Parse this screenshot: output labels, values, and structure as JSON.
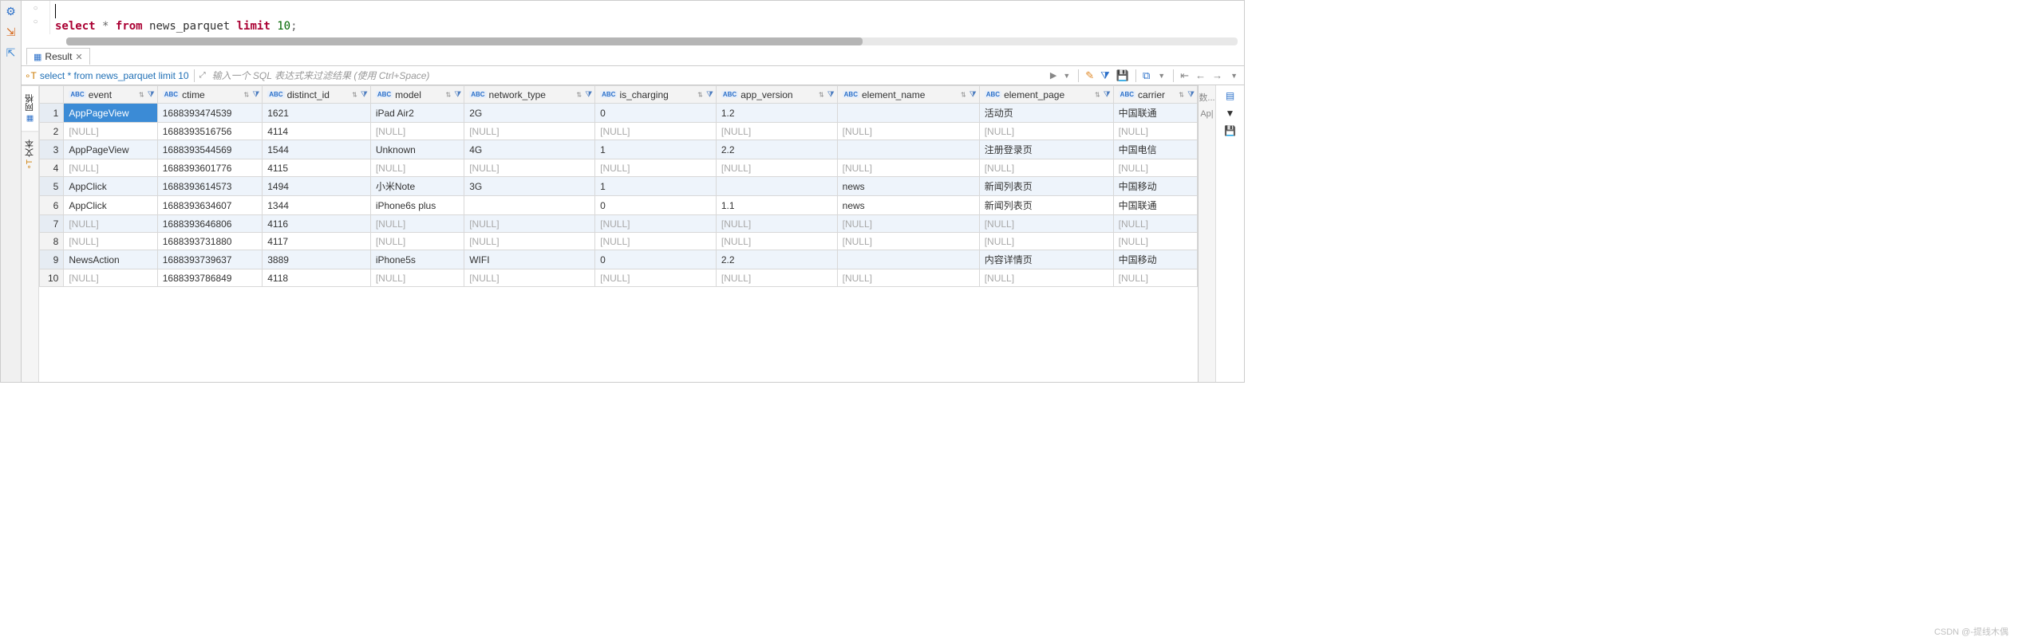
{
  "editor": {
    "code_html": "<span class='kw-red'>select</span> <span class='kw-gray'>*</span> <span class='kw-red'>from</span> news_parquet <span class='kw-red'>limit</span> <span class='kw-green'>10</span><span class='kw-gray'>;</span>"
  },
  "tab": {
    "label": "Result"
  },
  "querybar": {
    "query_text": "select * from news_parquet limit 10",
    "filter_placeholder": "输入一个 SQL 表达式来过滤结果 (使用 Ctrl+Space)"
  },
  "side_tabs": {
    "grid": "网格",
    "text": "文本"
  },
  "right_rail": {
    "value_label": "数...",
    "row_label": "Ap|"
  },
  "columns": [
    {
      "name": "event",
      "type": "ABC",
      "cls": "col-event"
    },
    {
      "name": "ctime",
      "type": "ABC",
      "cls": "col-ctime"
    },
    {
      "name": "distinct_id",
      "type": "ABC",
      "cls": "col-distinct"
    },
    {
      "name": "model",
      "type": "ABC",
      "cls": "col-model"
    },
    {
      "name": "network_type",
      "type": "ABC",
      "cls": "col-network"
    },
    {
      "name": "is_charging",
      "type": "ABC",
      "cls": "col-charging"
    },
    {
      "name": "app_version",
      "type": "ABC",
      "cls": "col-appver"
    },
    {
      "name": "element_name",
      "type": "ABC",
      "cls": "col-elname"
    },
    {
      "name": "element_page",
      "type": "ABC",
      "cls": "col-elpage"
    },
    {
      "name": "carrier",
      "type": "ABC",
      "cls": "col-carrier"
    }
  ],
  "rows": [
    [
      "AppPageView",
      "1688393474539",
      "1621",
      "iPad Air2",
      "2G",
      "0",
      "1.2",
      "",
      "活动页",
      "中国联通"
    ],
    [
      null,
      "1688393516756",
      "4114",
      null,
      null,
      null,
      null,
      null,
      null,
      null
    ],
    [
      "AppPageView",
      "1688393544569",
      "1544",
      "Unknown",
      "4G",
      "1",
      "2.2",
      "",
      "注册登录页",
      "中国电信"
    ],
    [
      null,
      "1688393601776",
      "4115",
      null,
      null,
      null,
      null,
      null,
      null,
      null
    ],
    [
      "AppClick",
      "1688393614573",
      "1494",
      "小米Note",
      "3G",
      "1",
      "",
      "news",
      "新闻列表页",
      "中国移动"
    ],
    [
      "AppClick",
      "1688393634607",
      "1344",
      "iPhone6s plus",
      "",
      "0",
      "1.1",
      "news",
      "新闻列表页",
      "中国联通"
    ],
    [
      null,
      "1688393646806",
      "4116",
      null,
      null,
      null,
      null,
      null,
      null,
      null
    ],
    [
      null,
      "1688393731880",
      "4117",
      null,
      null,
      null,
      null,
      null,
      null,
      null
    ],
    [
      "NewsAction",
      "1688393739637",
      "3889",
      "iPhone5s",
      "WIFI",
      "0",
      "2.2",
      "",
      "内容详情页",
      "中国移动"
    ],
    [
      null,
      "1688393786849",
      "4118",
      null,
      null,
      null,
      null,
      null,
      null,
      null
    ]
  ],
  "null_label": "[NULL]",
  "selected_cell": {
    "row": 0,
    "col": 0
  },
  "watermark": "CSDN @-提线木偶"
}
